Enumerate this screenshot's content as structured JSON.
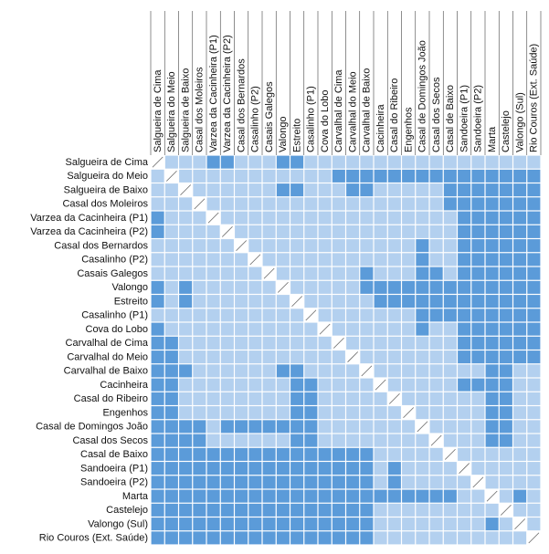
{
  "chart_data": {
    "type": "heatmap",
    "labels": [
      "Salgueira de Cima",
      "Salgueira do Meio",
      "Salgueira de Baixo",
      "Casal dos Moleiros",
      "Varzea da Cacinheira (P1)",
      "Varzea da Cacinheira (P2)",
      "Casal dos Bernardos",
      "Casalinho (P2)",
      "Casais Galegos",
      "Valongo",
      "Estreito",
      "Casalinho (P1)",
      "Cova do Lobo",
      "Carvalhal de Cima",
      "Carvalhal do Meio",
      "Carvalhal de Baixo",
      "Cacinheira",
      "Casal do Ribeiro",
      "Engenhos",
      "Casal de Domingos João",
      "Casal dos Secos",
      "Casal de Baixo",
      "Sandoeira (P1)",
      "Sandoeira (P2)",
      "Marta",
      "Castelejo",
      "Valongo (Sul)",
      "Rio Couros (Ext. Saúde)"
    ],
    "values_legend": {
      "0": "light",
      "1": "dark",
      "2": "diagonal"
    },
    "matrix": [
      "2000110001100000000000000000",
      "0200000000000111111111111111",
      "0020000001100011000001111111",
      "0002000000000000000001111111",
      "1000200000000000000000111111",
      "1000020000000000000000111111",
      "0000002000000000000100111111",
      "0000000200000000000100111111",
      "0000000020000001000110111111",
      "1010000002000001111111111111",
      "1010000000200000111111111111",
      "0000000000020000000111111111",
      "1000000000002000000100111111",
      "1100000000000200000000111111",
      "1100000000000020000000111111",
      "1110000001100002000000001100",
      "1100000000110000200000111100",
      "1100000000110000020000001100",
      "1100000000110000002000001100",
      "1111011111110000000200001100",
      "1111000000110000000020001100",
      "1111111111111111000002000000",
      "1111111111111111010000200000",
      "1111111111111111010000020000",
      "1111111111111111111111002010",
      "1111111111111111000000000200",
      "1111111111111111000000001020",
      "1111111111111111000000000002"
    ],
    "colors": {
      "light": "#b3d0ef",
      "dark": "#5b9bd9",
      "diagonal": "#ffffff",
      "grid": "#ffffff"
    }
  }
}
